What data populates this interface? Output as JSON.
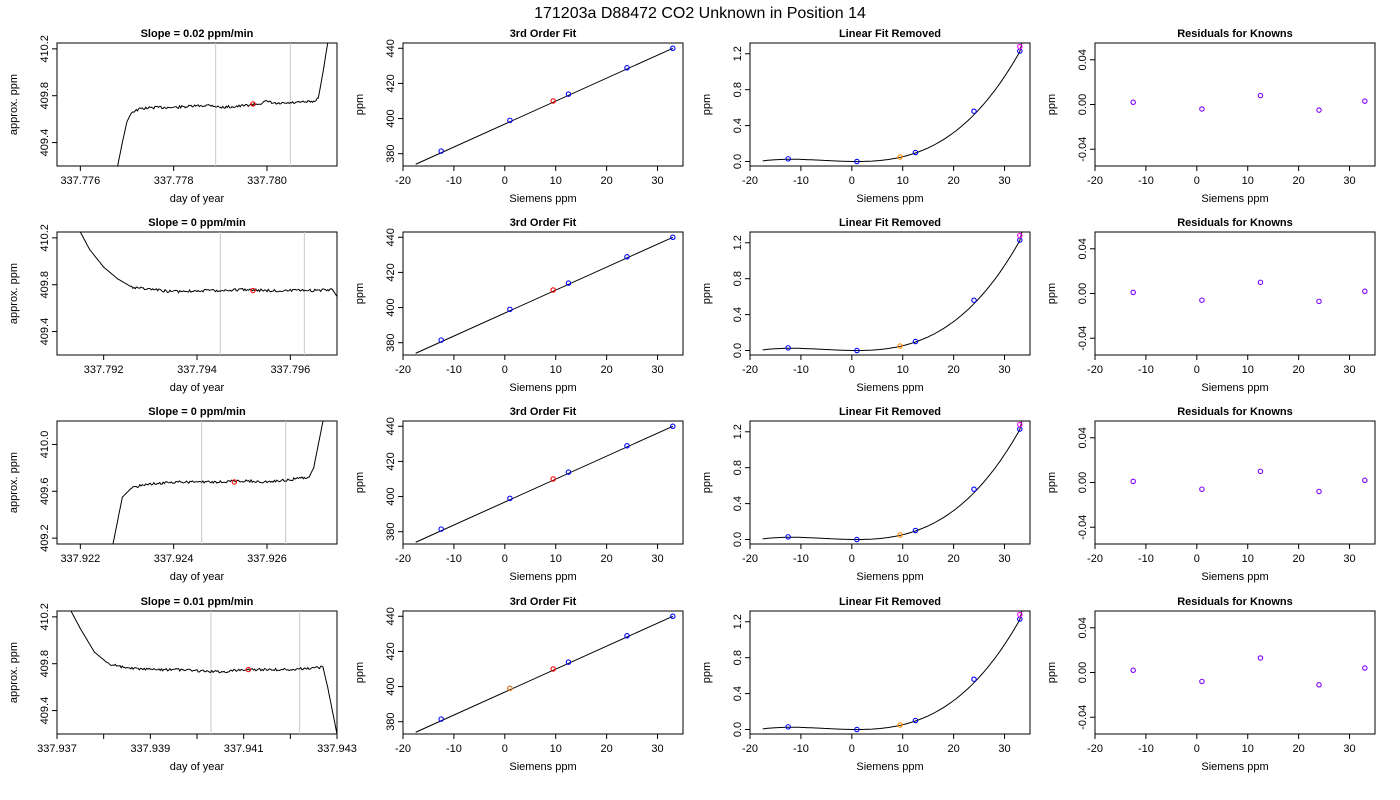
{
  "figure_title": "171203a      D88472    CO2 Unknown in Position  14",
  "chart_data": [
    {
      "type": "line",
      "title": "Slope =  0.02  ppm/min",
      "xlabel": "day of year",
      "ylabel": "approx. ppm",
      "xlim": [
        337.7755,
        337.7815
      ],
      "ylim": [
        409.2,
        410.25
      ],
      "xticks": [
        337.776,
        337.778,
        337.78
      ],
      "xticklabels": [
        "337.776",
        "337.778",
        "337.780"
      ],
      "yticks": [
        409.4,
        409.8,
        410.2
      ],
      "yticklabels": [
        "409.4",
        "409.8",
        "410.2"
      ],
      "vlines": [
        337.7789,
        337.7805
      ],
      "marker": {
        "x": 337.7797,
        "y": 409.73
      },
      "trace": [
        [
          337.7768,
          409.2
        ],
        [
          337.7769,
          409.4
        ],
        [
          337.777,
          409.58
        ],
        [
          337.7771,
          409.66
        ],
        [
          337.7773,
          409.69
        ],
        [
          337.7776,
          409.7
        ],
        [
          337.778,
          409.7
        ],
        [
          337.7784,
          409.71
        ],
        [
          337.7788,
          409.72
        ],
        [
          337.779,
          409.7
        ],
        [
          337.7794,
          409.71
        ],
        [
          337.7798,
          409.73
        ],
        [
          337.78,
          409.75
        ],
        [
          337.7802,
          409.73
        ],
        [
          337.7806,
          409.74
        ],
        [
          337.781,
          409.75
        ],
        [
          337.7811,
          409.78
        ],
        [
          337.7812,
          410.0
        ],
        [
          337.7813,
          410.25
        ]
      ]
    },
    {
      "type": "line",
      "title": "3rd Order Fit",
      "xlabel": "Siemens ppm",
      "ylabel": "ppm",
      "xlim": [
        -20,
        35
      ],
      "ylim": [
        373,
        443
      ],
      "xticks": [
        -20,
        -10,
        0,
        10,
        20,
        30
      ],
      "yticks": [
        380,
        400,
        420,
        440
      ],
      "line": [
        [
          -17.5,
          374.0
        ],
        [
          33,
          440.0
        ]
      ],
      "points": [
        {
          "x": -12.5,
          "y": 381.5,
          "c": "#0000ff"
        },
        {
          "x": 1,
          "y": 399.0,
          "c": "#0000ff"
        },
        {
          "x": 9.5,
          "y": 410.0,
          "c": "#ff0000"
        },
        {
          "x": 12.5,
          "y": 413.9,
          "c": "#0000ff"
        },
        {
          "x": 24,
          "y": 428.9,
          "c": "#0000ff"
        },
        {
          "x": 33,
          "y": 440.0,
          "c": "#0000ff"
        }
      ]
    },
    {
      "type": "line",
      "title": "Linear Fit Removed",
      "xlabel": "Siemens ppm",
      "ylabel": "ppm",
      "xlim": [
        -20,
        35
      ],
      "ylim": [
        -0.05,
        1.32
      ],
      "xticks": [
        -20,
        -10,
        0,
        10,
        20,
        30
      ],
      "yticks": [
        0.0,
        0.4,
        0.8,
        1.2
      ],
      "yticklabels": [
        "0.0",
        "0.4",
        "0.8",
        "1.2"
      ],
      "points": [
        {
          "x": -12.5,
          "y": 0.03,
          "c": "#0000ff"
        },
        {
          "x": 1,
          "y": 0.0,
          "c": "#0000ff"
        },
        {
          "x": 9.5,
          "y": 0.05,
          "c": "#ff8c00"
        },
        {
          "x": 12.5,
          "y": 0.1,
          "c": "#0000ff"
        },
        {
          "x": 24,
          "y": 0.56,
          "c": "#0000ff"
        },
        {
          "x": 33,
          "y": 1.23,
          "c": "#0000ff"
        },
        {
          "x": 33,
          "y": 1.28,
          "c": "#ff00ff"
        }
      ]
    },
    {
      "type": "scatter",
      "title": "Residuals for Knowns",
      "xlabel": "Siemens ppm",
      "ylabel": "ppm",
      "xlim": [
        -20,
        35
      ],
      "ylim": [
        -0.055,
        0.055
      ],
      "xticks": [
        -20,
        -10,
        0,
        10,
        20,
        30
      ],
      "yticks": [
        -0.04,
        0.0,
        0.04
      ],
      "yticklabels": [
        "-0.04",
        "0.00",
        "0.04"
      ],
      "points": [
        {
          "x": -12.5,
          "y": 0.002,
          "c": "#8000ff"
        },
        {
          "x": 1,
          "y": -0.004,
          "c": "#8000ff"
        },
        {
          "x": 12.5,
          "y": 0.008,
          "c": "#8000ff"
        },
        {
          "x": 24,
          "y": -0.005,
          "c": "#8000ff"
        },
        {
          "x": 33,
          "y": 0.003,
          "c": "#8000ff"
        }
      ]
    },
    {
      "type": "line",
      "title": "Slope =  0  ppm/min",
      "xlabel": "day of year",
      "ylabel": "approx. ppm",
      "xlim": [
        337.791,
        337.797
      ],
      "ylim": [
        409.2,
        410.25
      ],
      "xticks": [
        337.792,
        337.794,
        337.796
      ],
      "xticklabels": [
        "337.792",
        "337.794",
        "337.796"
      ],
      "yticks": [
        409.4,
        409.8,
        410.2
      ],
      "yticklabels": [
        "409.4",
        "409.8",
        "410.2"
      ],
      "vlines": [
        337.7945,
        337.7963
      ],
      "marker": {
        "x": 337.7952,
        "y": 409.75
      },
      "trace": [
        [
          337.7915,
          410.25
        ],
        [
          337.7917,
          410.1
        ],
        [
          337.792,
          409.95
        ],
        [
          337.7923,
          409.85
        ],
        [
          337.7926,
          409.78
        ],
        [
          337.793,
          409.76
        ],
        [
          337.7935,
          409.74
        ],
        [
          337.794,
          409.75
        ],
        [
          337.7945,
          409.75
        ],
        [
          337.795,
          409.76
        ],
        [
          337.7955,
          409.75
        ],
        [
          337.796,
          409.75
        ],
        [
          337.7965,
          409.75
        ],
        [
          337.7969,
          409.76
        ],
        [
          337.797,
          409.7
        ],
        [
          337.7971,
          409.4
        ],
        [
          337.7972,
          409.2
        ]
      ]
    },
    {
      "type": "line",
      "title": "3rd Order Fit",
      "xlabel": "Siemens ppm",
      "ylabel": "ppm",
      "xlim": [
        -20,
        35
      ],
      "ylim": [
        373,
        443
      ],
      "xticks": [
        -20,
        -10,
        0,
        10,
        20,
        30
      ],
      "yticks": [
        380,
        400,
        420,
        440
      ],
      "line": [
        [
          -17.5,
          374.0
        ],
        [
          33,
          440.0
        ]
      ],
      "points": [
        {
          "x": -12.5,
          "y": 381.5,
          "c": "#0000ff"
        },
        {
          "x": 1,
          "y": 399.0,
          "c": "#0000ff"
        },
        {
          "x": 9.5,
          "y": 410.0,
          "c": "#ff0000"
        },
        {
          "x": 12.5,
          "y": 413.9,
          "c": "#0000ff"
        },
        {
          "x": 24,
          "y": 428.9,
          "c": "#0000ff"
        },
        {
          "x": 33,
          "y": 440.0,
          "c": "#0000ff"
        }
      ]
    },
    {
      "type": "line",
      "title": "Linear Fit Removed",
      "xlabel": "Siemens ppm",
      "ylabel": "ppm",
      "xlim": [
        -20,
        35
      ],
      "ylim": [
        -0.05,
        1.32
      ],
      "xticks": [
        -20,
        -10,
        0,
        10,
        20,
        30
      ],
      "yticks": [
        0.0,
        0.4,
        0.8,
        1.2
      ],
      "yticklabels": [
        "0.0",
        "0.4",
        "0.8",
        "1.2"
      ],
      "points": [
        {
          "x": -12.5,
          "y": 0.03,
          "c": "#0000ff"
        },
        {
          "x": 1,
          "y": 0.0,
          "c": "#0000ff"
        },
        {
          "x": 9.5,
          "y": 0.05,
          "c": "#ff8c00"
        },
        {
          "x": 12.5,
          "y": 0.1,
          "c": "#0000ff"
        },
        {
          "x": 24,
          "y": 0.56,
          "c": "#0000ff"
        },
        {
          "x": 33,
          "y": 1.23,
          "c": "#0000ff"
        },
        {
          "x": 33,
          "y": 1.28,
          "c": "#ff00ff"
        }
      ]
    },
    {
      "type": "scatter",
      "title": "Residuals for Knowns",
      "xlabel": "Siemens ppm",
      "ylabel": "ppm",
      "xlim": [
        -20,
        35
      ],
      "ylim": [
        -0.055,
        0.055
      ],
      "xticks": [
        -20,
        -10,
        0,
        10,
        20,
        30
      ],
      "yticks": [
        -0.04,
        0.0,
        0.04
      ],
      "yticklabels": [
        "-0.04",
        "0.00",
        "0.04"
      ],
      "points": [
        {
          "x": -12.5,
          "y": 0.001,
          "c": "#8000ff"
        },
        {
          "x": 1,
          "y": -0.006,
          "c": "#8000ff"
        },
        {
          "x": 12.5,
          "y": 0.01,
          "c": "#8000ff"
        },
        {
          "x": 24,
          "y": -0.007,
          "c": "#8000ff"
        },
        {
          "x": 33,
          "y": 0.002,
          "c": "#8000ff"
        }
      ]
    },
    {
      "type": "line",
      "title": "Slope =  0  ppm/min",
      "xlabel": "day of year",
      "ylabel": "approx. ppm",
      "xlim": [
        337.9215,
        337.9275
      ],
      "ylim": [
        409.15,
        410.2
      ],
      "xticks": [
        337.922,
        337.924,
        337.926
      ],
      "xticklabels": [
        "337.922",
        "337.924",
        "337.926"
      ],
      "yticks": [
        409.2,
        409.6,
        410.0
      ],
      "yticklabels": [
        "409.2",
        "409.6",
        "410.0"
      ],
      "vlines": [
        337.9246,
        337.9264
      ],
      "marker": {
        "x": 337.9253,
        "y": 409.68
      },
      "trace": [
        [
          337.9227,
          409.15
        ],
        [
          337.9228,
          409.35
        ],
        [
          337.9229,
          409.55
        ],
        [
          337.9231,
          409.63
        ],
        [
          337.9234,
          409.66
        ],
        [
          337.9238,
          409.67
        ],
        [
          337.9242,
          409.68
        ],
        [
          337.9246,
          409.68
        ],
        [
          337.925,
          409.68
        ],
        [
          337.9255,
          409.69
        ],
        [
          337.926,
          409.68
        ],
        [
          337.9265,
          409.7
        ],
        [
          337.9269,
          409.72
        ],
        [
          337.927,
          409.8
        ],
        [
          337.9271,
          410.0
        ],
        [
          337.9272,
          410.2
        ]
      ]
    },
    {
      "type": "line",
      "title": "3rd Order Fit",
      "xlabel": "Siemens ppm",
      "ylabel": "ppm",
      "xlim": [
        -20,
        35
      ],
      "ylim": [
        373,
        443
      ],
      "xticks": [
        -20,
        -10,
        0,
        10,
        20,
        30
      ],
      "yticks": [
        380,
        400,
        420,
        440
      ],
      "line": [
        [
          -17.5,
          374.0
        ],
        [
          33,
          440.0
        ]
      ],
      "points": [
        {
          "x": -12.5,
          "y": 381.5,
          "c": "#0000ff"
        },
        {
          "x": 1,
          "y": 399.0,
          "c": "#0000ff"
        },
        {
          "x": 9.5,
          "y": 410.0,
          "c": "#ff0000"
        },
        {
          "x": 12.5,
          "y": 413.9,
          "c": "#0000ff"
        },
        {
          "x": 24,
          "y": 428.9,
          "c": "#0000ff"
        },
        {
          "x": 33,
          "y": 440.0,
          "c": "#0000ff"
        }
      ]
    },
    {
      "type": "line",
      "title": "Linear Fit Removed",
      "xlabel": "Siemens ppm",
      "ylabel": "ppm",
      "xlim": [
        -20,
        35
      ],
      "ylim": [
        -0.05,
        1.32
      ],
      "xticks": [
        -20,
        -10,
        0,
        10,
        20,
        30
      ],
      "yticks": [
        0.0,
        0.4,
        0.8,
        1.2
      ],
      "yticklabels": [
        "0.0",
        "0.4",
        "0.8",
        "1.2"
      ],
      "points": [
        {
          "x": -12.5,
          "y": 0.03,
          "c": "#0000ff"
        },
        {
          "x": 1,
          "y": 0.0,
          "c": "#0000ff"
        },
        {
          "x": 9.5,
          "y": 0.05,
          "c": "#ff8c00"
        },
        {
          "x": 12.5,
          "y": 0.1,
          "c": "#0000ff"
        },
        {
          "x": 24,
          "y": 0.56,
          "c": "#0000ff"
        },
        {
          "x": 33,
          "y": 1.23,
          "c": "#0000ff"
        },
        {
          "x": 33,
          "y": 1.28,
          "c": "#ff00ff"
        }
      ]
    },
    {
      "type": "scatter",
      "title": "Residuals for Knowns",
      "xlabel": "Siemens ppm",
      "ylabel": "ppm",
      "xlim": [
        -20,
        35
      ],
      "ylim": [
        -0.055,
        0.055
      ],
      "xticks": [
        -20,
        -10,
        0,
        10,
        20,
        30
      ],
      "yticks": [
        -0.04,
        0.0,
        0.04
      ],
      "yticklabels": [
        "-0.04",
        "0.00",
        "0.04"
      ],
      "points": [
        {
          "x": -12.5,
          "y": 0.001,
          "c": "#8000ff"
        },
        {
          "x": 1,
          "y": -0.006,
          "c": "#8000ff"
        },
        {
          "x": 12.5,
          "y": 0.01,
          "c": "#8000ff"
        },
        {
          "x": 24,
          "y": -0.008,
          "c": "#8000ff"
        },
        {
          "x": 33,
          "y": 0.002,
          "c": "#8000ff"
        }
      ]
    },
    {
      "type": "line",
      "title": "Slope =  0.01  ppm/min",
      "xlabel": "day of year",
      "ylabel": "approx. ppm",
      "xlim": [
        337.937,
        337.943
      ],
      "ylim": [
        409.2,
        410.25
      ],
      "xticks": [
        337.937,
        337.938,
        337.939,
        337.94,
        337.941,
        337.942,
        337.943
      ],
      "xticklabels": [
        "337.937",
        "",
        "337.939",
        "",
        "337.941",
        "",
        "337.943"
      ],
      "yticks": [
        409.4,
        409.8,
        410.2
      ],
      "yticklabels": [
        "409.4",
        "409.8",
        "410.2"
      ],
      "vlines": [
        337.9403,
        337.9422
      ],
      "marker": {
        "x": 337.9411,
        "y": 409.75
      },
      "trace": [
        [
          337.9373,
          410.25
        ],
        [
          337.9375,
          410.1
        ],
        [
          337.9378,
          409.9
        ],
        [
          337.9381,
          409.8
        ],
        [
          337.9385,
          409.76
        ],
        [
          337.939,
          409.75
        ],
        [
          337.9395,
          409.75
        ],
        [
          337.94,
          409.74
        ],
        [
          337.9405,
          409.73
        ],
        [
          337.941,
          409.75
        ],
        [
          337.9415,
          409.75
        ],
        [
          337.942,
          409.75
        ],
        [
          337.9424,
          409.76
        ],
        [
          337.9427,
          409.77
        ],
        [
          337.9428,
          409.6
        ],
        [
          337.9429,
          409.4
        ],
        [
          337.943,
          409.2
        ]
      ]
    },
    {
      "type": "line",
      "title": "3rd Order Fit",
      "xlabel": "Siemens ppm",
      "ylabel": "ppm",
      "xlim": [
        -20,
        35
      ],
      "ylim": [
        373,
        443
      ],
      "xticks": [
        -20,
        -10,
        0,
        10,
        20,
        30
      ],
      "yticks": [
        380,
        400,
        420,
        440
      ],
      "line": [
        [
          -17.5,
          374.0
        ],
        [
          33,
          440.0
        ]
      ],
      "points": [
        {
          "x": -12.5,
          "y": 381.5,
          "c": "#0000ff"
        },
        {
          "x": 1,
          "y": 399.0,
          "c": "#0000ff"
        },
        {
          "x": 1,
          "y": 399.0,
          "c": "#ff8c00"
        },
        {
          "x": 9.5,
          "y": 410.0,
          "c": "#ff0000"
        },
        {
          "x": 12.5,
          "y": 413.9,
          "c": "#0000ff"
        },
        {
          "x": 24,
          "y": 428.9,
          "c": "#0000ff"
        },
        {
          "x": 33,
          "y": 440.0,
          "c": "#0000ff"
        }
      ]
    },
    {
      "type": "line",
      "title": "Linear Fit Removed",
      "xlabel": "Siemens ppm",
      "ylabel": "ppm",
      "xlim": [
        -20,
        35
      ],
      "ylim": [
        -0.05,
        1.32
      ],
      "xticks": [
        -20,
        -10,
        0,
        10,
        20,
        30
      ],
      "yticks": [
        0.0,
        0.4,
        0.8,
        1.2
      ],
      "yticklabels": [
        "0.0",
        "0.4",
        "0.8",
        "1.2"
      ],
      "points": [
        {
          "x": -12.5,
          "y": 0.03,
          "c": "#0000ff"
        },
        {
          "x": 1,
          "y": 0.0,
          "c": "#0000ff"
        },
        {
          "x": 9.5,
          "y": 0.05,
          "c": "#ff8c00"
        },
        {
          "x": 12.5,
          "y": 0.1,
          "c": "#0000ff"
        },
        {
          "x": 24,
          "y": 0.56,
          "c": "#0000ff"
        },
        {
          "x": 33,
          "y": 1.23,
          "c": "#0000ff"
        },
        {
          "x": 33,
          "y": 1.28,
          "c": "#ff00ff"
        }
      ]
    },
    {
      "type": "scatter",
      "title": "Residuals for Knowns",
      "xlabel": "Siemens ppm",
      "ylabel": "ppm",
      "xlim": [
        -20,
        35
      ],
      "ylim": [
        -0.055,
        0.055
      ],
      "xticks": [
        -20,
        -10,
        0,
        10,
        20,
        30
      ],
      "yticks": [
        -0.04,
        0.0,
        0.04
      ],
      "yticklabels": [
        "-0.04",
        "0.00",
        "0.04"
      ],
      "points": [
        {
          "x": -12.5,
          "y": 0.002,
          "c": "#8000ff"
        },
        {
          "x": 1,
          "y": -0.008,
          "c": "#8000ff"
        },
        {
          "x": 12.5,
          "y": 0.013,
          "c": "#8000ff"
        },
        {
          "x": 24,
          "y": -0.011,
          "c": "#8000ff"
        },
        {
          "x": 33,
          "y": 0.004,
          "c": "#8000ff"
        }
      ]
    }
  ]
}
